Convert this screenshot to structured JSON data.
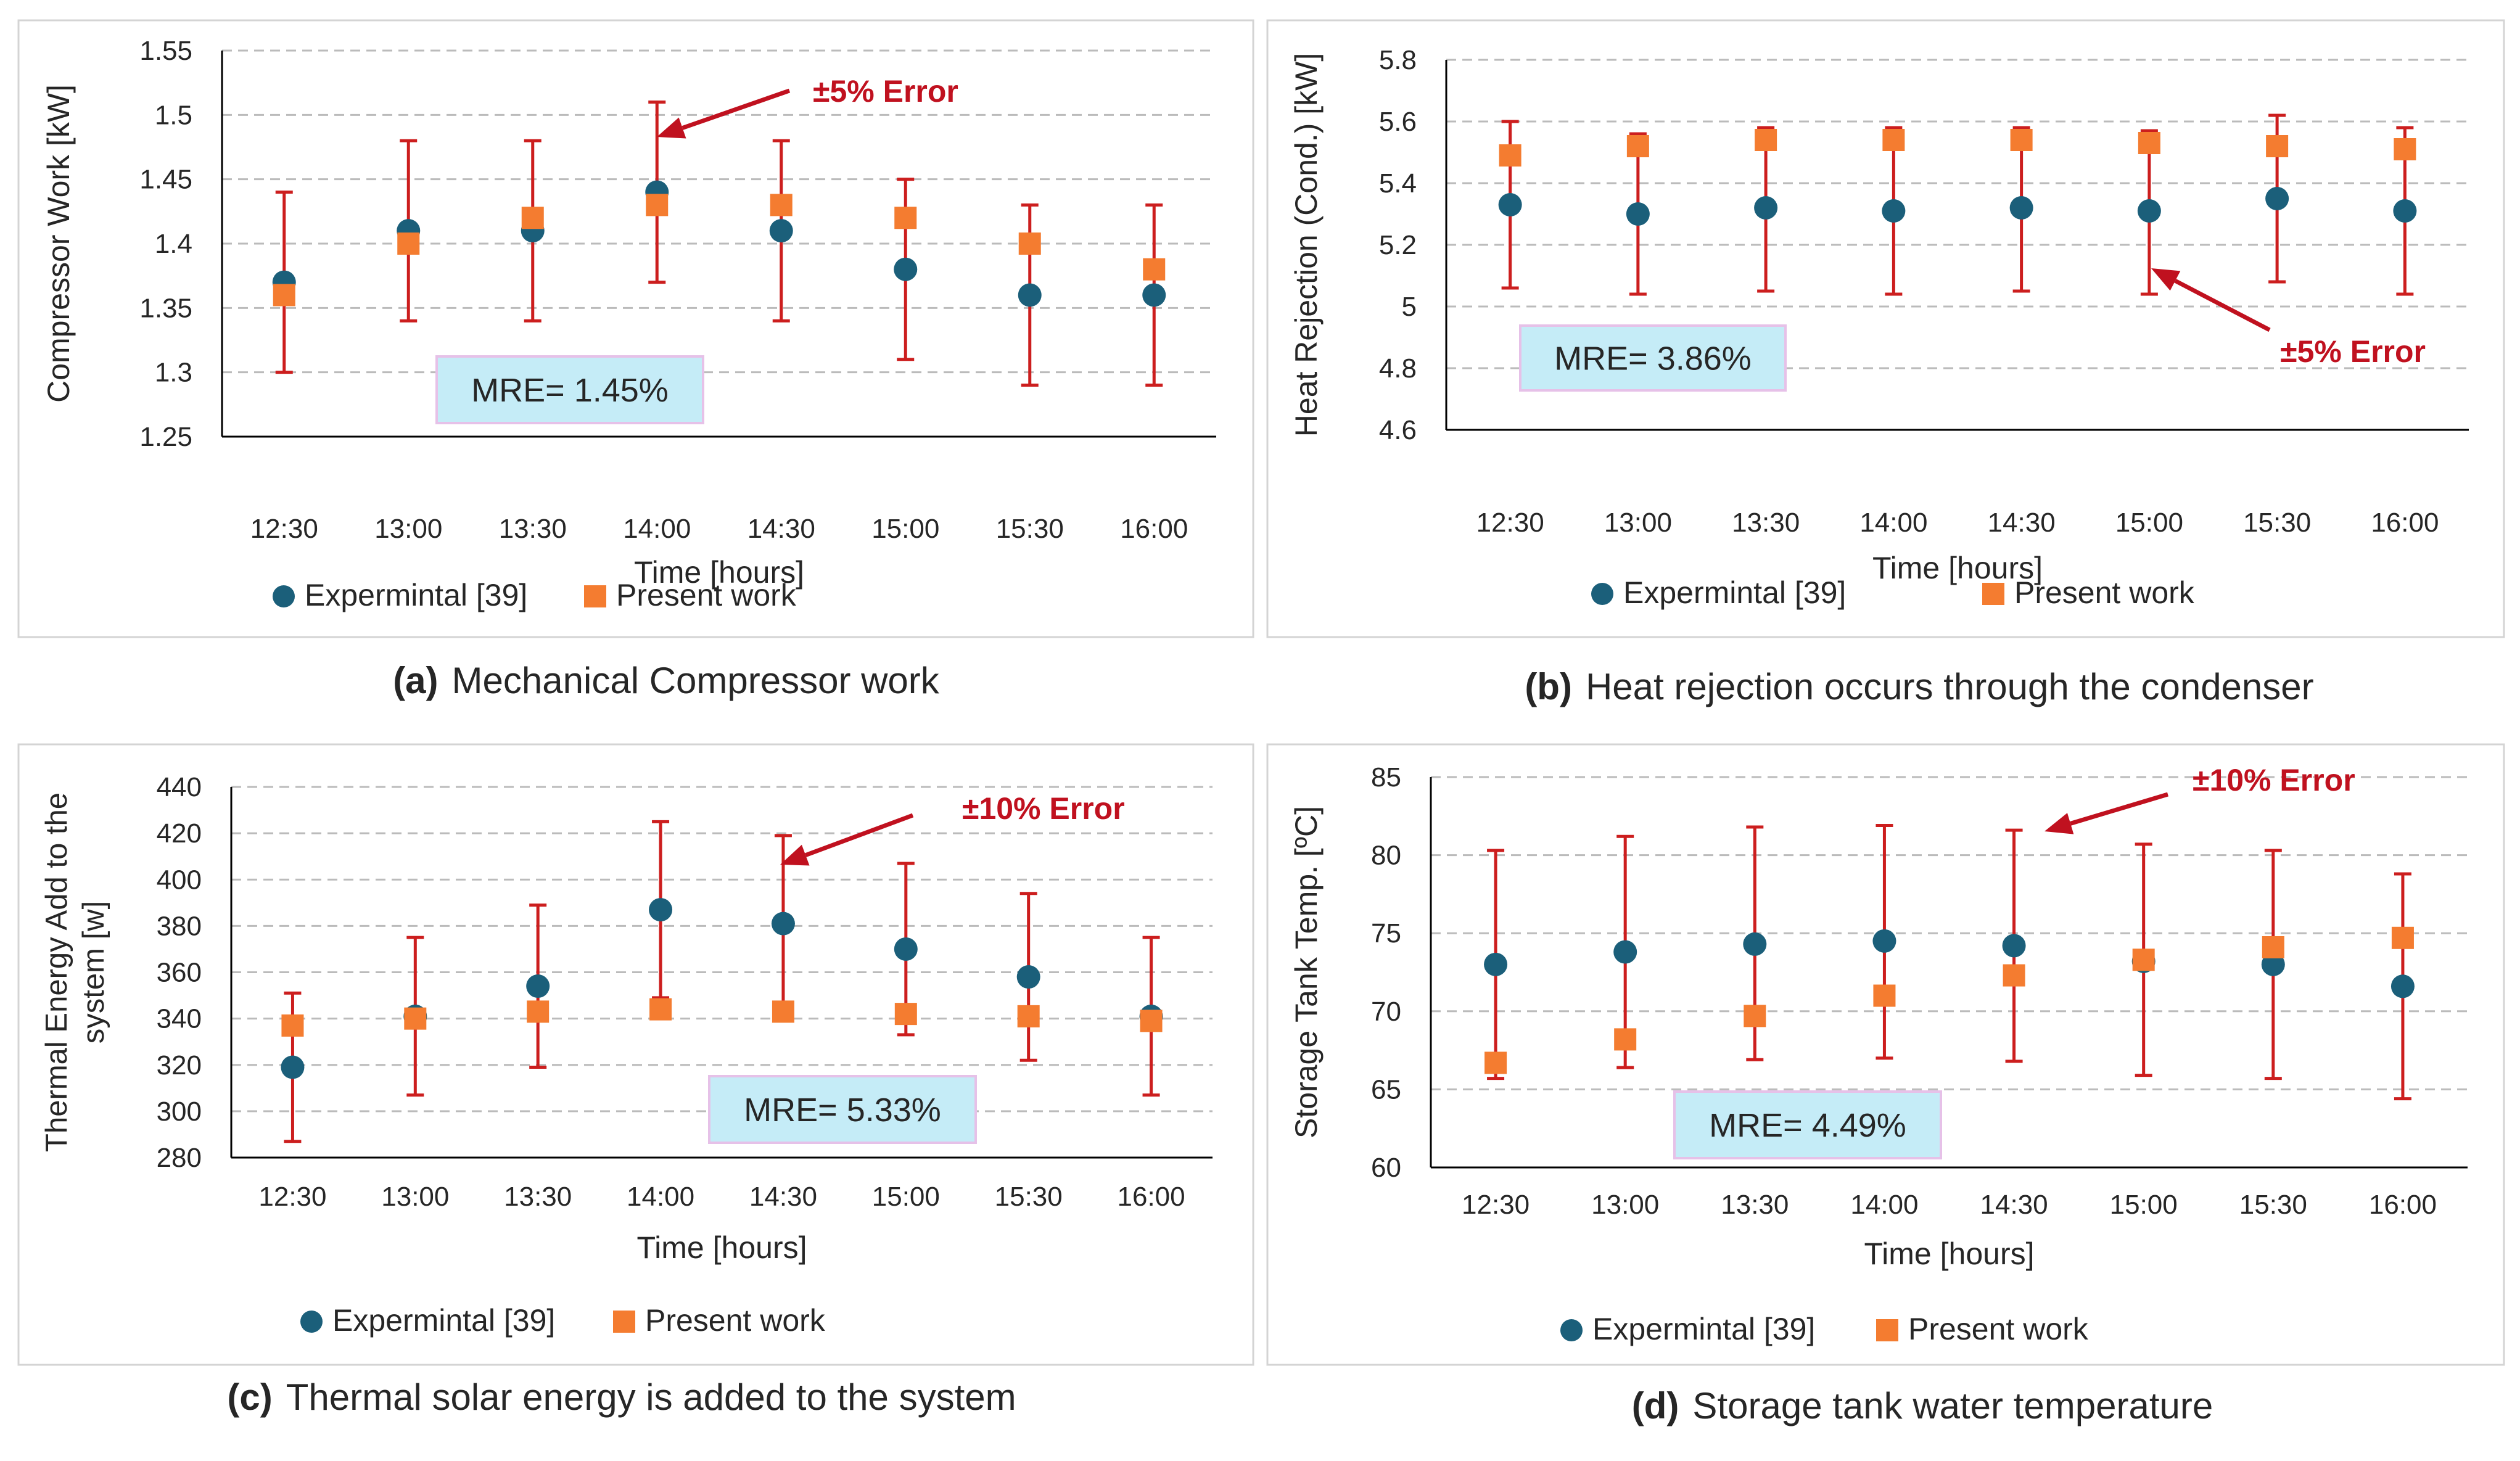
{
  "colors": {
    "experimental": "#1b5f7a",
    "present": "#f47c30",
    "errorbar": "#cc1e1e",
    "annotation": "#c0111f",
    "mre_fill": "#c5ecf7",
    "mre_border": "#e6c1e8",
    "grid": "#bbbbbb",
    "frame": "#d4d4d4",
    "text": "#262626"
  },
  "panels": [
    {
      "id": "a",
      "caption_letter": "(a)",
      "caption_text": "Mechanical Compressor work",
      "mre_label": "MRE= 1.45%",
      "annotation": "±5% Error",
      "chart_data": {
        "type": "scatter",
        "title": "",
        "xlabel": "Time [hours]",
        "ylabel": "Compressor Work [kW]",
        "categories": [
          "12:30",
          "13:00",
          "13:30",
          "14:00",
          "14:30",
          "15:00",
          "15:30",
          "16:00"
        ],
        "y_ticks": [
          "1.25",
          "1.3",
          "1.35",
          "1.4",
          "1.45",
          "1.5",
          "1.55"
        ],
        "ylim": [
          1.25,
          1.55
        ],
        "grid": true,
        "legend_position": "bottom",
        "error_percent": 5,
        "series": [
          {
            "name": "Expermintal [39]",
            "marker": "circle",
            "values": [
              1.37,
              1.41,
              1.41,
              1.44,
              1.41,
              1.38,
              1.36,
              1.36
            ]
          },
          {
            "name": "Present work",
            "marker": "square",
            "values": [
              1.36,
              1.4,
              1.42,
              1.43,
              1.43,
              1.42,
              1.4,
              1.38
            ]
          }
        ],
        "error_bars": [
          [
            1.3,
            1.44
          ],
          [
            1.34,
            1.48
          ],
          [
            1.34,
            1.48
          ],
          [
            1.37,
            1.51
          ],
          [
            1.34,
            1.48
          ],
          [
            1.31,
            1.45
          ],
          [
            1.29,
            1.43
          ],
          [
            1.29,
            1.43
          ]
        ]
      }
    },
    {
      "id": "b",
      "caption_letter": "(b)",
      "caption_text": "Heat rejection occurs through the condenser",
      "mre_label": "MRE= 3.86%",
      "annotation": "±5% Error",
      "chart_data": {
        "type": "scatter",
        "title": "",
        "xlabel": "Time [hours]",
        "ylabel": "Heat Rejection (Cond.) [kW]",
        "categories": [
          "12:30",
          "13:00",
          "13:30",
          "14:00",
          "14:30",
          "15:00",
          "15:30",
          "16:00"
        ],
        "y_ticks": [
          "4.6",
          "4.8",
          "5",
          "5.2",
          "5.4",
          "5.6",
          "5.8"
        ],
        "ylim": [
          4.6,
          5.8
        ],
        "grid": true,
        "legend_position": "bottom",
        "error_percent": 5,
        "series": [
          {
            "name": "Expermintal [39]",
            "marker": "circle",
            "values": [
              5.33,
              5.3,
              5.32,
              5.31,
              5.32,
              5.31,
              5.35,
              5.31
            ]
          },
          {
            "name": "Present work",
            "marker": "square",
            "values": [
              5.49,
              5.52,
              5.54,
              5.54,
              5.54,
              5.53,
              5.52,
              5.51
            ]
          }
        ],
        "error_bars": [
          [
            5.06,
            5.6
          ],
          [
            5.04,
            5.56
          ],
          [
            5.05,
            5.58
          ],
          [
            5.04,
            5.58
          ],
          [
            5.05,
            5.58
          ],
          [
            5.04,
            5.57
          ],
          [
            5.08,
            5.62
          ],
          [
            5.04,
            5.58
          ]
        ]
      }
    },
    {
      "id": "c",
      "caption_letter": "(c)",
      "caption_text": "Thermal solar energy is added to the system",
      "mre_label": "MRE= 5.33%",
      "annotation": "±10% Error",
      "chart_data": {
        "type": "scatter",
        "title": "",
        "xlabel": "Time [hours]",
        "ylabel": "Thermal Energy Add to the system [w]",
        "ylabel_lines": [
          "Thermal Energy Add to the",
          "system [w]"
        ],
        "categories": [
          "12:30",
          "13:00",
          "13:30",
          "14:00",
          "14:30",
          "15:00",
          "15:30",
          "16:00"
        ],
        "y_ticks": [
          "280",
          "300",
          "320",
          "340",
          "360",
          "380",
          "400",
          "420",
          "440"
        ],
        "ylim": [
          280,
          440
        ],
        "grid": true,
        "legend_position": "bottom",
        "error_percent": 10,
        "series": [
          {
            "name": "Expermintal [39]",
            "marker": "circle",
            "values": [
              319,
              341,
              354,
              387,
              381,
              370,
              358,
              341
            ]
          },
          {
            "name": "Present work",
            "marker": "square",
            "values": [
              337,
              340,
              343,
              344,
              343,
              342,
              341,
              339
            ]
          }
        ],
        "error_bars": [
          [
            287,
            351
          ],
          [
            307,
            375
          ],
          [
            319,
            389
          ],
          [
            349,
            425
          ],
          [
            343,
            419
          ],
          [
            333,
            407
          ],
          [
            322,
            394
          ],
          [
            307,
            375
          ]
        ]
      }
    },
    {
      "id": "d",
      "caption_letter": "(d)",
      "caption_text": "Storage tank water temperature",
      "mre_label": "MRE= 4.49%",
      "annotation": "±10% Error",
      "chart_data": {
        "type": "scatter",
        "title": "",
        "xlabel": "Time [hours]",
        "ylabel": "Storage Tank Temp. [ºC]",
        "categories": [
          "12:30",
          "13:00",
          "13:30",
          "14:00",
          "14:30",
          "15:00",
          "15:30",
          "16:00"
        ],
        "y_ticks": [
          "60",
          "65",
          "70",
          "75",
          "80",
          "85"
        ],
        "ylim": [
          60,
          85
        ],
        "grid": true,
        "legend_position": "bottom",
        "error_percent": 10,
        "series": [
          {
            "name": "Expermintal [39]",
            "marker": "circle",
            "values": [
              73.0,
              73.8,
              74.3,
              74.5,
              74.2,
              73.2,
              73.0,
              71.6
            ]
          },
          {
            "name": "Present work",
            "marker": "square",
            "values": [
              66.7,
              68.2,
              69.7,
              71.0,
              72.3,
              73.3,
              74.1,
              74.7
            ]
          }
        ],
        "error_bars": [
          [
            65.7,
            80.3
          ],
          [
            66.4,
            81.2
          ],
          [
            66.9,
            81.8
          ],
          [
            67.0,
            81.9
          ],
          [
            66.8,
            81.6
          ],
          [
            65.9,
            80.7
          ],
          [
            65.7,
            80.3
          ],
          [
            64.4,
            78.8
          ]
        ]
      }
    }
  ]
}
